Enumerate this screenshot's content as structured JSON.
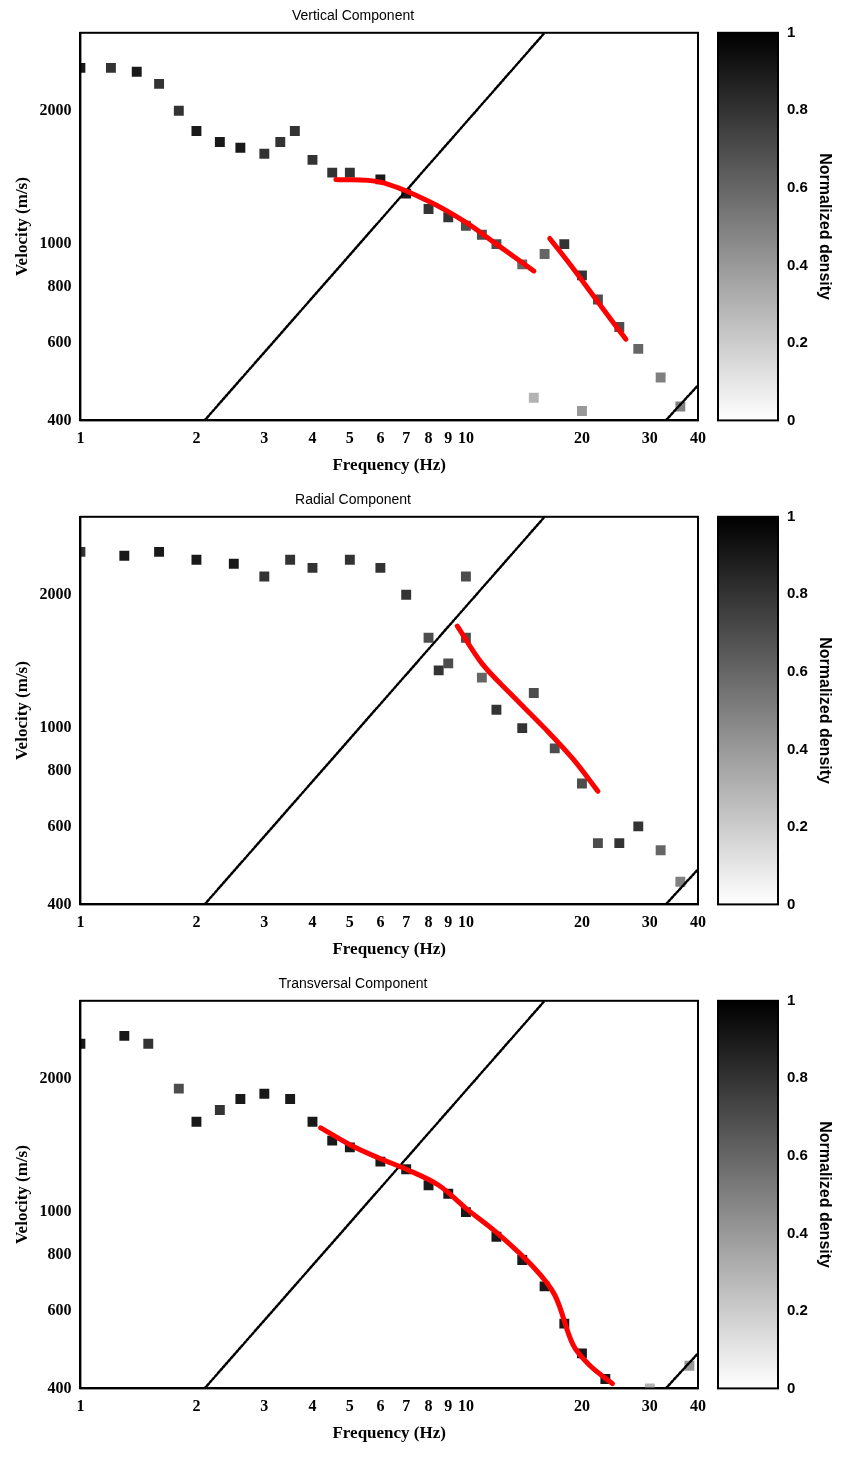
{
  "chart_data": [
    {
      "type": "density",
      "title": "Vertical Component",
      "x_label": "Frequency (Hz)",
      "y_label": "Velocity (m/s)",
      "log": true,
      "grid": false,
      "xlim": [
        1,
        40
      ],
      "ylim": [
        400,
        3000
      ],
      "xticks": [
        1,
        2,
        3,
        4,
        5,
        6,
        7,
        8,
        9,
        10,
        20,
        30,
        40
      ],
      "yticks": [
        400,
        600,
        800,
        1000,
        2000
      ],
      "density": {
        "points": [
          [
            1,
            2500,
            0.9
          ],
          [
            1.2,
            2500,
            0.8
          ],
          [
            1.4,
            2450,
            0.9
          ],
          [
            1.6,
            2300,
            0.8
          ],
          [
            1.8,
            2000,
            0.8
          ],
          [
            2,
            1800,
            0.9
          ],
          [
            2.3,
            1700,
            0.9
          ],
          [
            2.6,
            1650,
            0.9
          ],
          [
            3,
            1600,
            0.8
          ],
          [
            3.3,
            1700,
            0.8
          ],
          [
            3.6,
            1800,
            0.8
          ],
          [
            4,
            1550,
            0.8
          ],
          [
            4.5,
            1450,
            0.8
          ],
          [
            5,
            1450,
            0.8
          ],
          [
            6,
            1400,
            0.9
          ],
          [
            7,
            1300,
            0.9
          ],
          [
            8,
            1200,
            0.8
          ],
          [
            9,
            1150,
            0.8
          ],
          [
            10,
            1100,
            0.7
          ],
          [
            11,
            1050,
            0.7
          ],
          [
            12,
            1000,
            0.7
          ],
          [
            14,
            900,
            0.6
          ],
          [
            16,
            950,
            0.6
          ],
          [
            18,
            1000,
            0.8
          ],
          [
            20,
            850,
            0.8
          ],
          [
            22,
            750,
            0.7
          ],
          [
            25,
            650,
            0.7
          ],
          [
            28,
            580,
            0.6
          ],
          [
            32,
            500,
            0.5
          ],
          [
            36,
            430,
            0.5
          ],
          [
            15,
            450,
            0.3
          ],
          [
            20,
            420,
            0.4
          ]
        ],
        "colorbar": {
          "label": "Normalized density",
          "range": [
            0,
            1
          ],
          "ticks": [
            0,
            0.2,
            0.4,
            0.6,
            0.8,
            1
          ]
        }
      },
      "series": [
        {
          "type": "line",
          "color": "#ff0000",
          "line_style": "solid",
          "x": [
            4.6,
            6,
            8,
            10,
            12,
            15
          ],
          "values": [
            1400,
            1380,
            1250,
            1120,
            1000,
            870
          ]
        },
        {
          "type": "line",
          "color": "#ff0000",
          "line_style": "solid",
          "x": [
            16.5,
            19,
            22,
            26
          ],
          "values": [
            1030,
            880,
            740,
            610
          ]
        },
        {
          "type": "line",
          "color": "#000000",
          "line_style": "dotted",
          "x": [
            2.1,
            16
          ],
          "values": [
            400,
            3000
          ]
        },
        {
          "type": "line",
          "color": "#000000",
          "line_style": "dotted",
          "x": [
            33,
            40
          ],
          "values": [
            400,
            480
          ]
        }
      ]
    },
    {
      "type": "density",
      "title": "Radial Component",
      "x_label": "Frequency (Hz)",
      "y_label": "Velocity (m/s)",
      "log": true,
      "grid": false,
      "xlim": [
        1,
        40
      ],
      "ylim": [
        400,
        3000
      ],
      "xticks": [
        1,
        2,
        3,
        4,
        5,
        6,
        7,
        8,
        9,
        10,
        20,
        30,
        40
      ],
      "yticks": [
        400,
        600,
        800,
        1000,
        2000
      ],
      "density": {
        "points": [
          [
            1,
            2500,
            0.8
          ],
          [
            1.3,
            2450,
            0.9
          ],
          [
            1.6,
            2500,
            0.9
          ],
          [
            2,
            2400,
            0.9
          ],
          [
            2.5,
            2350,
            0.9
          ],
          [
            3,
            2200,
            0.8
          ],
          [
            3.5,
            2400,
            0.8
          ],
          [
            4,
            2300,
            0.8
          ],
          [
            5,
            2400,
            0.8
          ],
          [
            6,
            2300,
            0.8
          ],
          [
            7,
            2000,
            0.8
          ],
          [
            8,
            1600,
            0.7
          ],
          [
            8.5,
            1350,
            0.8
          ],
          [
            9,
            1400,
            0.7
          ],
          [
            10,
            1600,
            0.7
          ],
          [
            10,
            2200,
            0.7
          ],
          [
            11,
            1300,
            0.6
          ],
          [
            12,
            1100,
            0.8
          ],
          [
            14,
            1000,
            0.8
          ],
          [
            15,
            1200,
            0.7
          ],
          [
            17,
            900,
            0.7
          ],
          [
            20,
            750,
            0.7
          ],
          [
            22,
            550,
            0.7
          ],
          [
            25,
            550,
            0.8
          ],
          [
            28,
            600,
            0.8
          ],
          [
            32,
            530,
            0.6
          ],
          [
            36,
            450,
            0.5
          ]
        ],
        "colorbar": {
          "label": "Normalized density",
          "range": [
            0,
            1
          ],
          "ticks": [
            0,
            0.2,
            0.4,
            0.6,
            0.8,
            1
          ]
        }
      },
      "series": [
        {
          "type": "line",
          "color": "#ff0000",
          "line_style": "solid",
          "x": [
            9.5,
            11,
            13,
            16,
            19,
            22
          ],
          "values": [
            1700,
            1400,
            1200,
            1000,
            850,
            720
          ]
        },
        {
          "type": "line",
          "color": "#000000",
          "line_style": "dotted",
          "x": [
            2.1,
            16
          ],
          "values": [
            400,
            3000
          ]
        },
        {
          "type": "line",
          "color": "#000000",
          "line_style": "dotted",
          "x": [
            33,
            40
          ],
          "values": [
            400,
            480
          ]
        }
      ]
    },
    {
      "type": "density",
      "title": "Transversal Component",
      "x_label": "Frequency (Hz)",
      "y_label": "Velocity (m/s)",
      "log": true,
      "grid": false,
      "xlim": [
        1,
        40
      ],
      "ylim": [
        400,
        3000
      ],
      "xticks": [
        1,
        2,
        3,
        4,
        5,
        6,
        7,
        8,
        9,
        10,
        20,
        30,
        40
      ],
      "yticks": [
        400,
        600,
        800,
        1000,
        2000
      ],
      "density": {
        "points": [
          [
            1,
            2400,
            0.9
          ],
          [
            1.3,
            2500,
            0.9
          ],
          [
            1.5,
            2400,
            0.8
          ],
          [
            1.8,
            1900,
            0.7
          ],
          [
            2,
            1600,
            0.9
          ],
          [
            2.3,
            1700,
            0.8
          ],
          [
            2.6,
            1800,
            0.9
          ],
          [
            3,
            1850,
            0.9
          ],
          [
            3.5,
            1800,
            0.9
          ],
          [
            4,
            1600,
            0.9
          ],
          [
            4.5,
            1450,
            0.9
          ],
          [
            5,
            1400,
            0.9
          ],
          [
            6,
            1300,
            0.9
          ],
          [
            7,
            1250,
            0.9
          ],
          [
            8,
            1150,
            0.9
          ],
          [
            9,
            1100,
            0.9
          ],
          [
            10,
            1000,
            0.9
          ],
          [
            12,
            880,
            0.9
          ],
          [
            14,
            780,
            0.9
          ],
          [
            16,
            680,
            0.9
          ],
          [
            18,
            560,
            0.9
          ],
          [
            20,
            480,
            0.9
          ],
          [
            23,
            420,
            0.9
          ],
          [
            30,
            400,
            0.3
          ],
          [
            38,
            450,
            0.4
          ]
        ],
        "colorbar": {
          "label": "Normalized density",
          "range": [
            0,
            1
          ],
          "ticks": [
            0,
            0.2,
            0.4,
            0.6,
            0.8,
            1
          ]
        }
      },
      "series": [
        {
          "type": "line",
          "color": "#ff0000",
          "line_style": "solid",
          "x": [
            4.2,
            5,
            6,
            7,
            8.5,
            10,
            12,
            15,
            17,
            19,
            21,
            24
          ],
          "values": [
            1550,
            1420,
            1320,
            1250,
            1150,
            1020,
            900,
            750,
            650,
            500,
            450,
            410
          ]
        },
        {
          "type": "line",
          "color": "#000000",
          "line_style": "dotted",
          "x": [
            2.1,
            16
          ],
          "values": [
            400,
            3000
          ]
        },
        {
          "type": "line",
          "color": "#000000",
          "line_style": "dotted",
          "x": [
            33,
            40
          ],
          "values": [
            400,
            480
          ]
        }
      ]
    }
  ]
}
